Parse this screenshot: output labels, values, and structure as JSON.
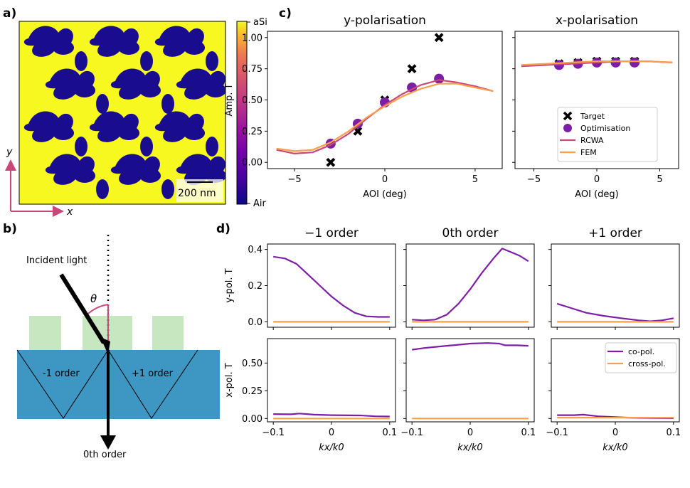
{
  "panel_labels": {
    "a": "a)",
    "b": "b)",
    "c": "c)",
    "d": "d)"
  },
  "panel_a": {
    "colorbar_top": "aSi",
    "colorbar_bottom": "Air",
    "scale_bar": "200 nm",
    "axis_y": "y",
    "axis_x": "x",
    "colors": {
      "aSi": "#f7f81f",
      "Air": "#1a0c8f"
    }
  },
  "panel_b": {
    "incident": "Incident light",
    "theta": "θ",
    "minus1": "-1 order",
    "plus1": "+1 order",
    "zeroth": "0th order",
    "colors": {
      "substrate": "#3d97c2",
      "pillar": "#c6e7c0",
      "angle": "#c9487a"
    }
  },
  "chart_data": [
    {
      "type": "line",
      "panel": "c",
      "title": "y-polarisation",
      "xlabel": "AOI (deg)",
      "ylabel": "Amp. T",
      "xlim": [
        -6.5,
        6.5
      ],
      "ylim": [
        -0.05,
        1.05
      ],
      "xticks": [
        -5,
        0,
        5
      ],
      "yticks": [
        "0.00",
        "0.25",
        "0.50",
        "0.75",
        "1.00"
      ],
      "series": [
        {
          "name": "Target",
          "kind": "marker-x",
          "color": "#000000",
          "x": [
            -3,
            -1.5,
            0,
            1.5,
            3
          ],
          "y": [
            0.0,
            0.25,
            0.5,
            0.75,
            1.0
          ]
        },
        {
          "name": "Optimisation",
          "kind": "marker-o",
          "color": "#7d1fa6",
          "x": [
            -3,
            -1.5,
            0,
            1.5,
            3
          ],
          "y": [
            0.15,
            0.31,
            0.48,
            0.6,
            0.67
          ]
        },
        {
          "name": "RCWA",
          "kind": "line",
          "color": "#c9487a",
          "x": [
            -6,
            -5,
            -4,
            -3,
            -2,
            -1,
            0,
            1,
            2,
            3,
            4,
            5,
            6
          ],
          "y": [
            0.1,
            0.07,
            0.08,
            0.14,
            0.23,
            0.35,
            0.46,
            0.55,
            0.62,
            0.66,
            0.64,
            0.61,
            0.57
          ]
        },
        {
          "name": "FEM",
          "kind": "line",
          "color": "#f6a04c",
          "x": [
            -6,
            -5,
            -4,
            -3,
            -2,
            -1,
            0,
            1,
            2,
            3,
            4,
            5,
            6
          ],
          "y": [
            0.11,
            0.09,
            0.1,
            0.16,
            0.25,
            0.36,
            0.45,
            0.53,
            0.59,
            0.63,
            0.63,
            0.6,
            0.57
          ]
        }
      ]
    },
    {
      "type": "line",
      "panel": "c",
      "title": "x-polarisation",
      "xlabel": "AOI (deg)",
      "ylabel": "",
      "xlim": [
        -6.5,
        6.5
      ],
      "ylim": [
        -0.05,
        1.05
      ],
      "xticks": [
        -5,
        0,
        5
      ],
      "legend": [
        "Target",
        "Optimisation",
        "RCWA",
        "FEM"
      ],
      "legend_position": "lower-right",
      "series": [
        {
          "name": "Target",
          "kind": "marker-x",
          "color": "#000000",
          "x": [
            -3,
            -1.5,
            0,
            1.5,
            3
          ],
          "y": [
            0.79,
            0.8,
            0.81,
            0.81,
            0.81
          ]
        },
        {
          "name": "Optimisation",
          "kind": "marker-o",
          "color": "#7d1fa6",
          "x": [
            -3,
            -1.5,
            0,
            1.5,
            3
          ],
          "y": [
            0.78,
            0.79,
            0.8,
            0.8,
            0.8
          ]
        },
        {
          "name": "RCWA",
          "kind": "line",
          "color": "#c9487a",
          "x": [
            -6,
            -4,
            -2,
            0,
            2,
            4,
            6
          ],
          "y": [
            0.77,
            0.78,
            0.79,
            0.8,
            0.81,
            0.81,
            0.8
          ]
        },
        {
          "name": "FEM",
          "kind": "line",
          "color": "#f6a04c",
          "x": [
            -6,
            -4,
            -2,
            0,
            2,
            4,
            6
          ],
          "y": [
            0.78,
            0.79,
            0.8,
            0.81,
            0.81,
            0.81,
            0.8
          ]
        }
      ]
    },
    {
      "type": "line",
      "panel": "d",
      "title": "−1 order",
      "ylabel": "y-pol. T",
      "xlim": [
        -0.11,
        0.11
      ],
      "ylim": [
        -0.03,
        0.43
      ],
      "yticks": [
        "0.0",
        "0.2",
        "0.4"
      ],
      "series": [
        {
          "name": "co-pol.",
          "color": "#7d1fa6",
          "x": [
            -0.1,
            -0.08,
            -0.06,
            -0.04,
            -0.02,
            0,
            0.02,
            0.04,
            0.06,
            0.08,
            0.1
          ],
          "y": [
            0.36,
            0.35,
            0.32,
            0.26,
            0.2,
            0.14,
            0.09,
            0.05,
            0.03,
            0.027,
            0.027
          ]
        },
        {
          "name": "cross-pol.",
          "color": "#f6a04c",
          "x": [
            -0.1,
            0.1
          ],
          "y": [
            0.0,
            0.0
          ]
        }
      ]
    },
    {
      "type": "line",
      "panel": "d",
      "title": "0th order",
      "ylabel": "",
      "xlim": [
        -0.11,
        0.11
      ],
      "ylim": [
        -0.03,
        0.43
      ],
      "series": [
        {
          "name": "co-pol.",
          "color": "#7d1fa6",
          "x": [
            -0.1,
            -0.08,
            -0.06,
            -0.04,
            -0.02,
            0,
            0.02,
            0.04,
            0.055,
            0.07,
            0.085,
            0.1
          ],
          "y": [
            0.012,
            0.008,
            0.012,
            0.04,
            0.1,
            0.18,
            0.27,
            0.35,
            0.405,
            0.385,
            0.365,
            0.335
          ]
        },
        {
          "name": "cross-pol.",
          "color": "#f6a04c",
          "x": [
            -0.1,
            0.1
          ],
          "y": [
            0.0,
            0.0
          ]
        }
      ]
    },
    {
      "type": "line",
      "panel": "d",
      "title": "+1 order",
      "ylabel": "",
      "xlim": [
        -0.11,
        0.11
      ],
      "ylim": [
        -0.03,
        0.43
      ],
      "series": [
        {
          "name": "co-pol.",
          "color": "#7d1fa6",
          "x": [
            -0.1,
            -0.08,
            -0.05,
            -0.02,
            0.01,
            0.04,
            0.06,
            0.08,
            0.1
          ],
          "y": [
            0.1,
            0.08,
            0.05,
            0.033,
            0.02,
            0.008,
            0.003,
            0.008,
            0.02
          ]
        },
        {
          "name": "cross-pol.",
          "color": "#f6a04c",
          "x": [
            -0.1,
            0.1
          ],
          "y": [
            0.0,
            0.0
          ]
        }
      ]
    },
    {
      "type": "line",
      "panel": "d",
      "title": "",
      "ylabel": "x-pol. T",
      "xlabel": "kx/k0",
      "xlim": [
        -0.11,
        0.11
      ],
      "ylim": [
        -0.03,
        0.72
      ],
      "yticks": [
        "0.00",
        "0.25",
        "0.50"
      ],
      "xticks": [
        "−0.1",
        "0.0",
        "0.1"
      ],
      "series": [
        {
          "name": "co-pol.",
          "color": "#7d1fa6",
          "x": [
            -0.1,
            -0.07,
            -0.055,
            -0.03,
            0,
            0.05,
            0.075,
            0.1
          ],
          "y": [
            0.04,
            0.038,
            0.045,
            0.035,
            0.03,
            0.028,
            0.02,
            0.018
          ]
        },
        {
          "name": "cross-pol.",
          "color": "#f6a04c",
          "x": [
            -0.1,
            0.1
          ],
          "y": [
            0.0,
            0.0
          ]
        }
      ]
    },
    {
      "type": "line",
      "panel": "d",
      "title": "",
      "ylabel": "",
      "xlabel": "kx/k0",
      "xlim": [
        -0.11,
        0.11
      ],
      "ylim": [
        -0.03,
        0.72
      ],
      "xticks": [
        "−0.1",
        "0.0",
        "0.1"
      ],
      "series": [
        {
          "name": "co-pol.",
          "color": "#7d1fa6",
          "x": [
            -0.1,
            -0.08,
            -0.05,
            -0.02,
            0.0,
            0.03,
            0.05,
            0.06,
            0.08,
            0.1
          ],
          "y": [
            0.62,
            0.635,
            0.65,
            0.665,
            0.675,
            0.68,
            0.675,
            0.66,
            0.66,
            0.655
          ]
        },
        {
          "name": "cross-pol.",
          "color": "#f6a04c",
          "x": [
            -0.1,
            0.1
          ],
          "y": [
            0.0,
            0.0
          ]
        }
      ]
    },
    {
      "type": "line",
      "panel": "d",
      "title": "",
      "ylabel": "",
      "xlabel": "kx/k0",
      "xlim": [
        -0.11,
        0.11
      ],
      "ylim": [
        -0.03,
        0.72
      ],
      "xticks": [
        "−0.1",
        "0.0",
        "0.1"
      ],
      "legend": [
        "co-pol.",
        "cross-pol."
      ],
      "legend_position": "top-right",
      "series": [
        {
          "name": "co-pol.",
          "color": "#7d1fa6",
          "x": [
            -0.1,
            -0.07,
            -0.055,
            -0.03,
            0,
            0.03,
            0.06,
            0.1
          ],
          "y": [
            0.03,
            0.03,
            0.035,
            0.02,
            0.012,
            0.006,
            0.004,
            0.003
          ]
        },
        {
          "name": "cross-pol.",
          "color": "#f6a04c",
          "x": [
            -0.1,
            0.1
          ],
          "y": [
            0.008,
            0.008
          ]
        }
      ]
    }
  ]
}
